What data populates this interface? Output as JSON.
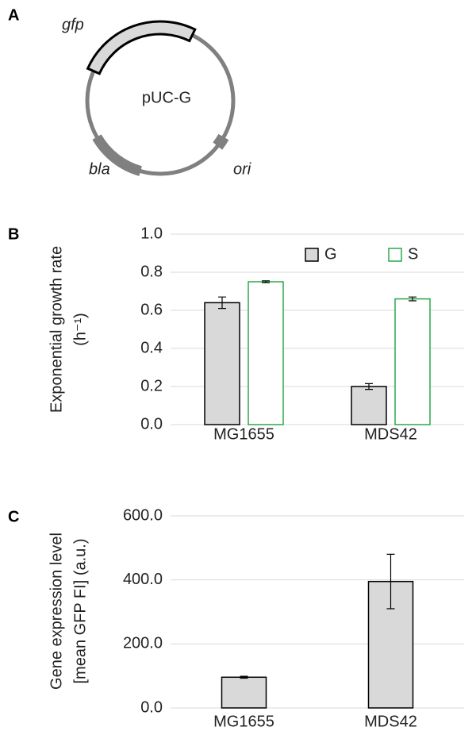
{
  "panel_labels": [
    "A",
    "B",
    "C"
  ],
  "diagram": {
    "plasmid": "pUC-G",
    "features": [
      "gfp",
      "bla",
      "ori"
    ]
  },
  "chart_data": [
    {
      "type": "bar",
      "y_label": [
        "Exponential growth rate",
        "(h⁻¹)"
      ],
      "categories": [
        "MG1655",
        "MDS42"
      ],
      "series": [
        {
          "name": "G",
          "color": "#d9d9d9",
          "edgecolor": "#000000",
          "values": [
            0.64,
            0.2
          ],
          "errors": [
            0.03,
            0.015
          ]
        },
        {
          "name": "S",
          "color": "#ffffff",
          "edgecolor": "#2aa84a",
          "values": [
            0.75,
            0.66
          ],
          "errors": [
            0.005,
            0.01
          ]
        }
      ],
      "ylim": [
        0,
        1
      ],
      "yticks": [
        {
          "value": 0,
          "label": "0.0"
        },
        {
          "value": 0.2,
          "label": "0.2"
        },
        {
          "value": 0.4,
          "label": "0.4"
        },
        {
          "value": 0.6,
          "label": "0.6"
        },
        {
          "value": 0.8,
          "label": "0.8"
        },
        {
          "value": 1,
          "label": "1.0"
        }
      ],
      "grid": true,
      "legend": "top-right"
    },
    {
      "type": "bar",
      "y_label": [
        "Gene expression level",
        "[mean GFP FI] (a.u.)"
      ],
      "categories": [
        "MG1655",
        "MDS42"
      ],
      "values": [
        96,
        395
      ],
      "errors": [
        3,
        85
      ],
      "color": "#d9d9d9",
      "edgecolor": "#000000",
      "ylim": [
        0,
        600
      ],
      "yticks": [
        {
          "value": 0,
          "label": "0.0"
        },
        {
          "value": 200,
          "label": "200.0"
        },
        {
          "value": 400,
          "label": "400.0"
        },
        {
          "value": 600,
          "label": "600.0"
        }
      ],
      "grid": true
    }
  ]
}
